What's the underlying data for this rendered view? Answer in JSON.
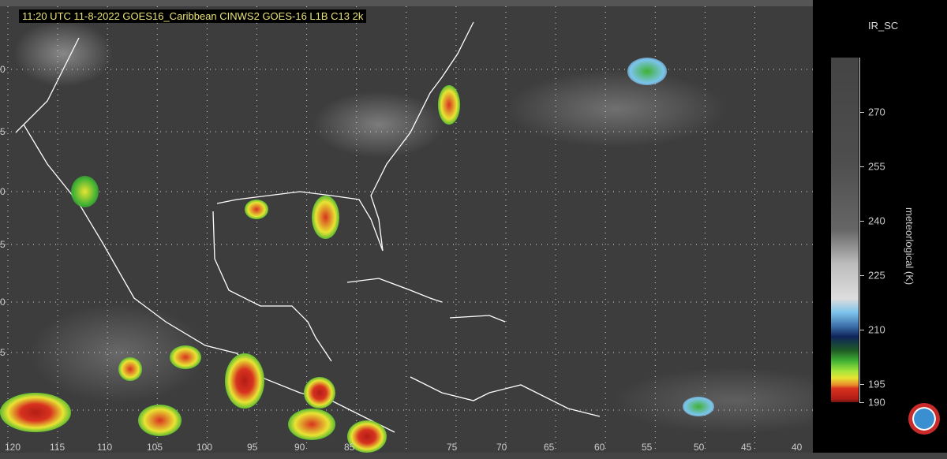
{
  "title": "11:20 UTC 11-8-2022 GOES16_Caribbean  CINWS2 GOES-16 L1B C13 2k",
  "map": {
    "longitude_labels": [
      "120",
      "115",
      "110",
      "105",
      "100",
      "95",
      "90",
      "85",
      "75",
      "70",
      "65",
      "60",
      "55",
      "50",
      "45",
      "40"
    ],
    "latitude_labels": [
      "0",
      "5",
      "0",
      "5",
      "0",
      "5"
    ]
  },
  "legend": {
    "title": "IR_SC",
    "unit_label": "meteorlogical (K)",
    "ticks": [
      "270",
      "255",
      "240",
      "225",
      "210",
      "195",
      "190"
    ],
    "range": [
      190,
      285
    ],
    "logo": "Cayman Islands National Weather Service"
  }
}
